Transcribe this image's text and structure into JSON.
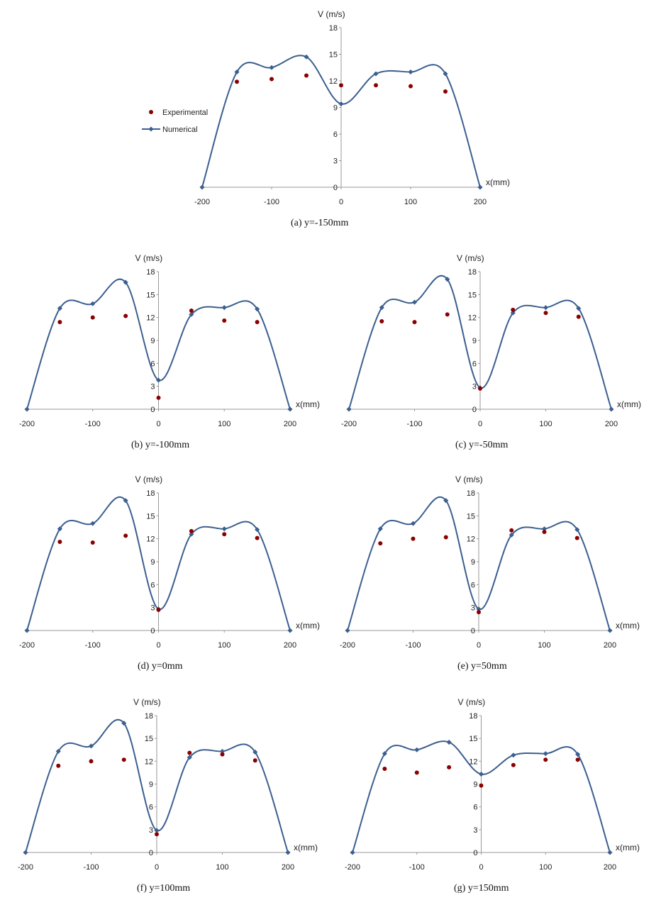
{
  "colors": {
    "numerical": "#3b5f8f",
    "experimental": "#8b0000",
    "axis": "#999999"
  },
  "legend": {
    "experimental": "Experimental",
    "numerical": "Numerical"
  },
  "chart_data": [
    {
      "type": "line",
      "caption_letter": "(a)",
      "caption_y": "y=-150mm",
      "ylabel": "V (m/s)",
      "xlabel": "x(mm)",
      "xlim": [
        -200,
        200
      ],
      "ylim": [
        0,
        18
      ],
      "xticks": [
        "-200",
        "-100",
        "0",
        "100",
        "200"
      ],
      "yticks": [
        "0",
        "3",
        "6",
        "9",
        "12",
        "15",
        "18"
      ],
      "series": [
        {
          "name": "Numerical",
          "x": [
            -200,
            -150,
            -100,
            -50,
            0,
            50,
            100,
            150,
            200
          ],
          "y": [
            0,
            13.0,
            13.5,
            14.7,
            9.4,
            12.8,
            13.0,
            12.8,
            0
          ]
        },
        {
          "name": "Experimental",
          "x": [
            -150,
            -100,
            -50,
            0,
            50,
            100,
            150
          ],
          "y": [
            11.9,
            12.2,
            12.6,
            11.5,
            11.5,
            11.4,
            10.8
          ]
        }
      ]
    },
    {
      "type": "line",
      "caption_letter": "(b)",
      "caption_y": "y=-100mm",
      "ylabel": "V (m/s)",
      "xlabel": "x(mm)",
      "xlim": [
        -200,
        200
      ],
      "ylim": [
        0,
        18
      ],
      "xticks": [
        "-200",
        "-100",
        "0",
        "100",
        "200"
      ],
      "yticks": [
        "0",
        "3",
        "6",
        "9",
        "12",
        "15",
        "18"
      ],
      "series": [
        {
          "name": "Numerical",
          "x": [
            -200,
            -150,
            -100,
            -50,
            0,
            50,
            100,
            150,
            200
          ],
          "y": [
            0,
            13.2,
            13.8,
            16.6,
            3.8,
            12.4,
            13.3,
            13.1,
            0
          ]
        },
        {
          "name": "Experimental",
          "x": [
            -150,
            -100,
            -50,
            0,
            50,
            100,
            150
          ],
          "y": [
            11.4,
            12.0,
            12.2,
            1.5,
            12.9,
            11.6,
            11.4
          ]
        }
      ]
    },
    {
      "type": "line",
      "caption_letter": "(c)",
      "caption_y": "y=-50mm",
      "ylabel": "V (m/s)",
      "xlabel": "x(mm)",
      "xlim": [
        -200,
        200
      ],
      "ylim": [
        0,
        18
      ],
      "xticks": [
        "-200",
        "-100",
        "0",
        "100",
        "200"
      ],
      "yticks": [
        "0",
        "3",
        "6",
        "9",
        "12",
        "15",
        "18"
      ],
      "series": [
        {
          "name": "Numerical",
          "x": [
            -200,
            -150,
            -100,
            -50,
            0,
            50,
            100,
            150,
            200
          ],
          "y": [
            0,
            13.3,
            14.0,
            17.0,
            2.8,
            12.6,
            13.3,
            13.2,
            0
          ]
        },
        {
          "name": "Experimental",
          "x": [
            -150,
            -100,
            -50,
            0,
            50,
            100,
            150
          ],
          "y": [
            11.5,
            11.4,
            12.4,
            2.7,
            13.0,
            12.6,
            12.1
          ]
        }
      ]
    },
    {
      "type": "line",
      "caption_letter": "(d)",
      "caption_y": "y=0mm",
      "ylabel": "V (m/s)",
      "xlabel": "x(mm)",
      "xlim": [
        -200,
        200
      ],
      "ylim": [
        0,
        18
      ],
      "xticks": [
        "-200",
        "-100",
        "0",
        "100",
        "200"
      ],
      "yticks": [
        "0",
        "3",
        "6",
        "9",
        "12",
        "15",
        "18"
      ],
      "series": [
        {
          "name": "Numerical",
          "x": [
            -200,
            -150,
            -100,
            -50,
            0,
            50,
            100,
            150,
            200
          ],
          "y": [
            0,
            13.3,
            14.0,
            17.0,
            2.8,
            12.6,
            13.3,
            13.2,
            0
          ]
        },
        {
          "name": "Experimental",
          "x": [
            -150,
            -100,
            -50,
            0,
            50,
            100,
            150
          ],
          "y": [
            11.6,
            11.5,
            12.4,
            2.7,
            13.0,
            12.6,
            12.1
          ]
        }
      ]
    },
    {
      "type": "line",
      "caption_letter": "(e)",
      "caption_y": "y=50mm",
      "ylabel": "V (m/s)",
      "xlabel": "x(mm)",
      "xlim": [
        -200,
        200
      ],
      "ylim": [
        0,
        18
      ],
      "xticks": [
        "-200",
        "-100",
        "0",
        "100",
        "200"
      ],
      "yticks": [
        "0",
        "3",
        "6",
        "9",
        "12",
        "15",
        "18"
      ],
      "series": [
        {
          "name": "Numerical",
          "x": [
            -200,
            -150,
            -100,
            -50,
            0,
            50,
            100,
            150,
            200
          ],
          "y": [
            0,
            13.3,
            14.0,
            17.0,
            2.8,
            12.5,
            13.3,
            13.2,
            0
          ]
        },
        {
          "name": "Experimental",
          "x": [
            -150,
            -100,
            -50,
            0,
            50,
            100,
            150
          ],
          "y": [
            11.4,
            12.0,
            12.2,
            2.4,
            13.1,
            12.9,
            12.1
          ]
        }
      ]
    },
    {
      "type": "line",
      "caption_letter": "(f)",
      "caption_y": "y=100mm",
      "ylabel": "V (m/s)",
      "xlabel": "x(mm)",
      "xlim": [
        -200,
        200
      ],
      "ylim": [
        0,
        18
      ],
      "xticks": [
        "-200",
        "-100",
        "0",
        "100",
        "200"
      ],
      "yticks": [
        "0",
        "3",
        "6",
        "9",
        "12",
        "15",
        "18"
      ],
      "series": [
        {
          "name": "Numerical",
          "x": [
            -200,
            -150,
            -100,
            -50,
            0,
            50,
            100,
            150,
            200
          ],
          "y": [
            0,
            13.3,
            14.0,
            17.0,
            2.9,
            12.5,
            13.3,
            13.2,
            0
          ]
        },
        {
          "name": "Experimental",
          "x": [
            -150,
            -100,
            -50,
            0,
            50,
            100,
            150
          ],
          "y": [
            11.4,
            12.0,
            12.2,
            2.4,
            13.1,
            12.9,
            12.1
          ]
        }
      ]
    },
    {
      "type": "line",
      "caption_letter": "(g)",
      "caption_y": "y=150mm",
      "ylabel": "V (m/s)",
      "xlabel": "x(mm)",
      "xlim": [
        -200,
        200
      ],
      "ylim": [
        0,
        18
      ],
      "xticks": [
        "-200",
        "-100",
        "0",
        "100",
        "200"
      ],
      "yticks": [
        "0",
        "3",
        "6",
        "9",
        "12",
        "15",
        "18"
      ],
      "series": [
        {
          "name": "Numerical",
          "x": [
            -200,
            -150,
            -100,
            -50,
            0,
            50,
            100,
            150,
            200
          ],
          "y": [
            0,
            13.0,
            13.5,
            14.5,
            10.3,
            12.8,
            13.0,
            12.9,
            0
          ]
        },
        {
          "name": "Experimental",
          "x": [
            -150,
            -100,
            -50,
            0,
            50,
            100,
            150
          ],
          "y": [
            11.0,
            10.5,
            11.2,
            8.8,
            11.5,
            12.2,
            12.2
          ]
        }
      ]
    }
  ]
}
